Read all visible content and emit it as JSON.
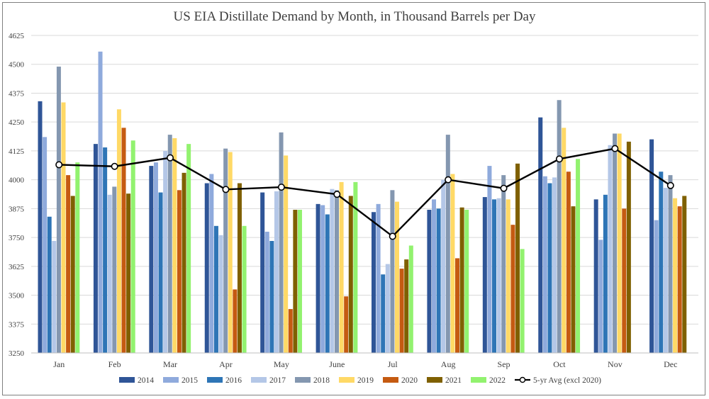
{
  "chart_data": {
    "type": "bar",
    "title": "US EIA Distillate Demand by Month, in Thousand Barrels per Day",
    "xlabel": "",
    "ylabel": "",
    "ylim": [
      3250,
      4625
    ],
    "yticks": [
      3250,
      3375,
      3500,
      3625,
      3750,
      3875,
      4000,
      4125,
      4250,
      4375,
      4500,
      4625
    ],
    "grid": true,
    "legend_position": "bottom",
    "categories": [
      "Jan",
      "Feb",
      "Mar",
      "Apr",
      "May",
      "June",
      "Jul",
      "Aug",
      "Sep",
      "Oct",
      "Nov",
      "Dec"
    ],
    "series": [
      {
        "name": "2014",
        "color": "#2f5597",
        "values": [
          4340,
          4155,
          4060,
          3985,
          3945,
          3895,
          3860,
          3870,
          3925,
          4270,
          3915,
          4175
        ]
      },
      {
        "name": "2015",
        "color": "#8faadc",
        "values": [
          4185,
          4555,
          4075,
          4025,
          3775,
          3890,
          3895,
          3915,
          4060,
          4015,
          3740,
          3825
        ]
      },
      {
        "name": "2016",
        "color": "#2e75b6",
        "values": [
          3840,
          4140,
          3945,
          3800,
          3735,
          3850,
          3590,
          3875,
          3915,
          3985,
          3935,
          4035
        ]
      },
      {
        "name": "2017",
        "color": "#b4c7e7",
        "values": [
          3735,
          3935,
          4125,
          3760,
          3950,
          3960,
          3635,
          4000,
          3920,
          4010,
          4150,
          3965
        ]
      },
      {
        "name": "2018",
        "color": "#8497b0",
        "values": [
          4490,
          3970,
          4195,
          4135,
          4205,
          3955,
          3955,
          4195,
          4020,
          4345,
          4200,
          4020
        ]
      },
      {
        "name": "2019",
        "color": "#ffd966",
        "values": [
          4335,
          4305,
          4180,
          4120,
          4105,
          3990,
          3905,
          4025,
          3915,
          4225,
          4200,
          3920
        ]
      },
      {
        "name": "2020",
        "color": "#c55a11",
        "values": [
          4020,
          4225,
          3955,
          3525,
          3440,
          3495,
          3615,
          3660,
          3805,
          4035,
          3875,
          3885
        ]
      },
      {
        "name": "2021",
        "color": "#7f6000",
        "values": [
          3930,
          3940,
          4030,
          3985,
          3870,
          3930,
          3655,
          3880,
          4070,
          3885,
          4165,
          3930
        ]
      },
      {
        "name": "2022",
        "color": "#92f26f",
        "values": [
          4075,
          4170,
          4155,
          3800,
          3870,
          3990,
          3715,
          3870,
          3700,
          4090,
          null,
          null
        ]
      }
    ],
    "line_series": {
      "name": "5-yr Avg (excl 2020)",
      "color": "#000000",
      "values": [
        4065,
        4058,
        4095,
        3958,
        3968,
        3937,
        3755,
        4000,
        3963,
        4090,
        4135,
        3975
      ]
    }
  }
}
